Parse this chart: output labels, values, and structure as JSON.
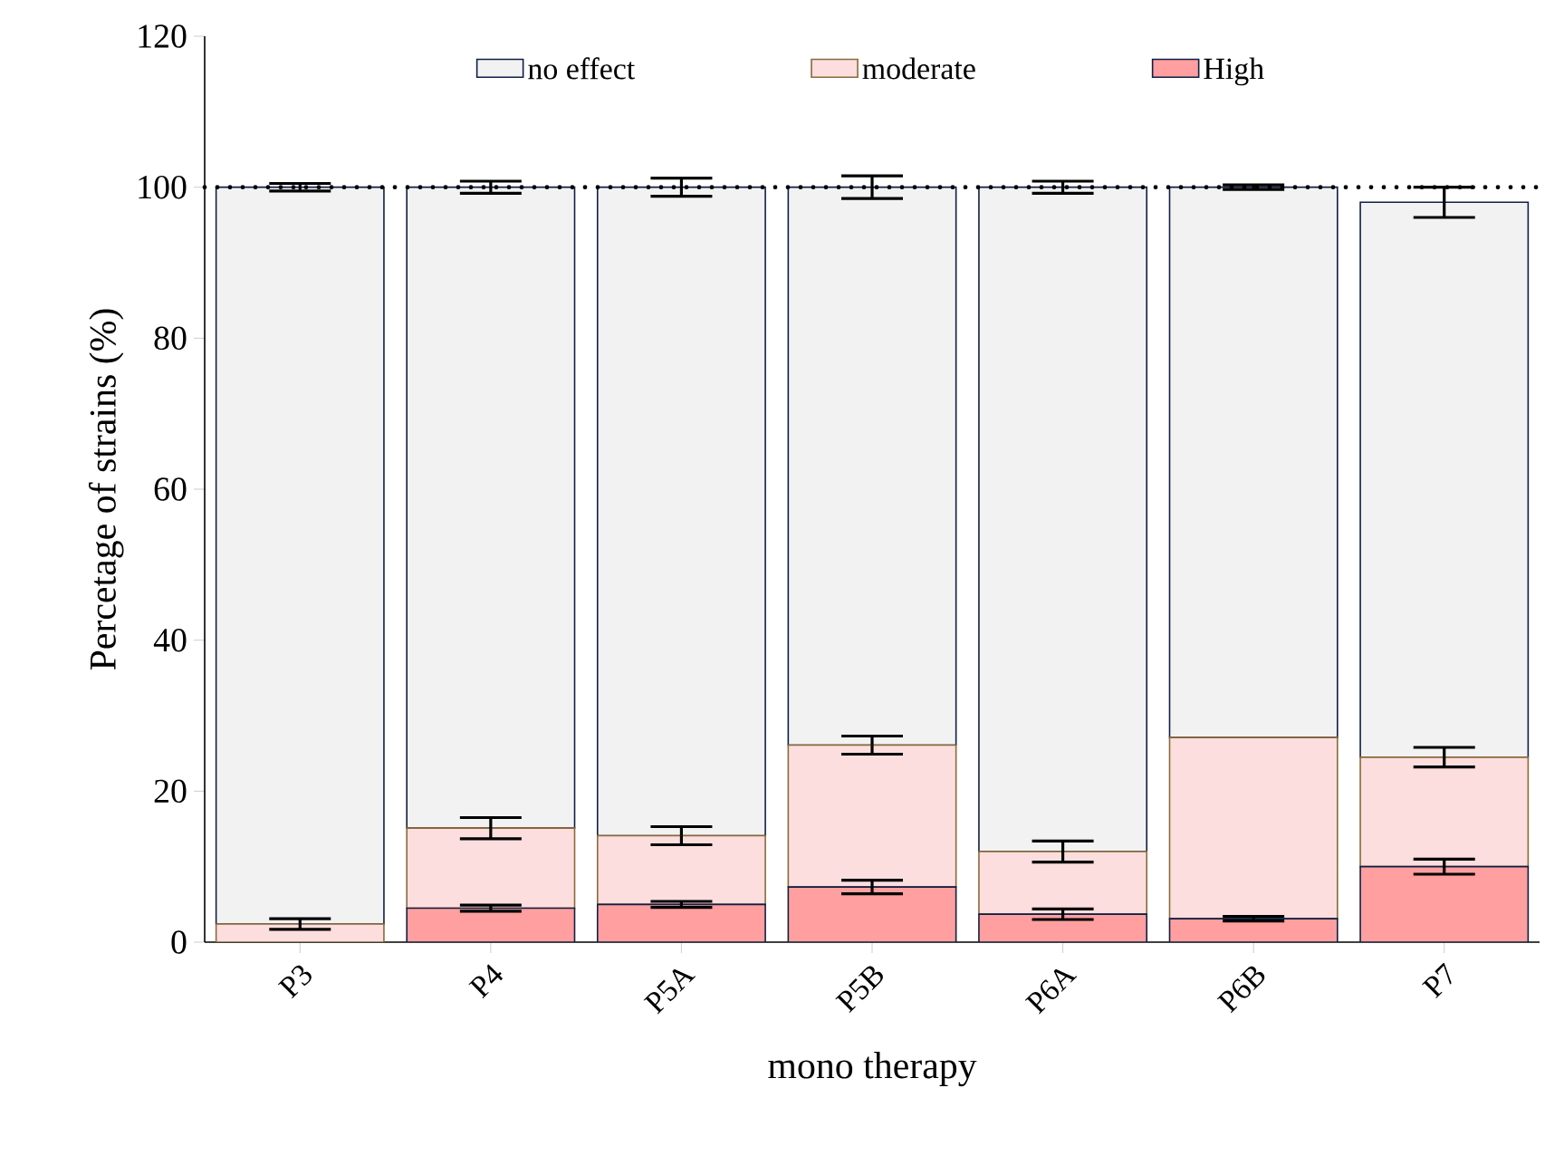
{
  "chart_data": {
    "type": "bar",
    "stacked": true,
    "xlabel": "mono therapy",
    "ylabel": "Percetage of strains (%)",
    "categories": [
      "P3",
      "P4",
      "P5A",
      "P5B",
      "P6A",
      "P6B",
      "P7"
    ],
    "series": [
      {
        "name": "High",
        "color": "#ff9f9f",
        "values": [
          0,
          4.5,
          5,
          7.3,
          3.7,
          3.1,
          10
        ],
        "errors": [
          null,
          0.4,
          0.4,
          0.9,
          0.7,
          0.3,
          1
        ]
      },
      {
        "name": "moderate",
        "color": "#fddede",
        "values": [
          2.4,
          10.6,
          9.1,
          18.8,
          8.3,
          24,
          14.5
        ],
        "errors": [
          0.7,
          1.4,
          1.2,
          1.2,
          1.4,
          null,
          1.3
        ]
      },
      {
        "name": "no effect",
        "color": "#f2f2f2",
        "values": [
          97.6,
          84.9,
          85.9,
          73.9,
          88,
          72.9,
          73.5
        ],
        "errors": [
          0.5,
          0.8,
          1.2,
          1.5,
          0.8,
          0.3,
          2
        ]
      }
    ],
    "ylim": [
      0,
      120
    ],
    "yticks": [
      0,
      20,
      40,
      60,
      80,
      100,
      120
    ],
    "ref_lines": [
      {
        "axis": "y",
        "value": 100,
        "line_style": "dotted"
      }
    ],
    "legend": "top",
    "grid": false
  }
}
